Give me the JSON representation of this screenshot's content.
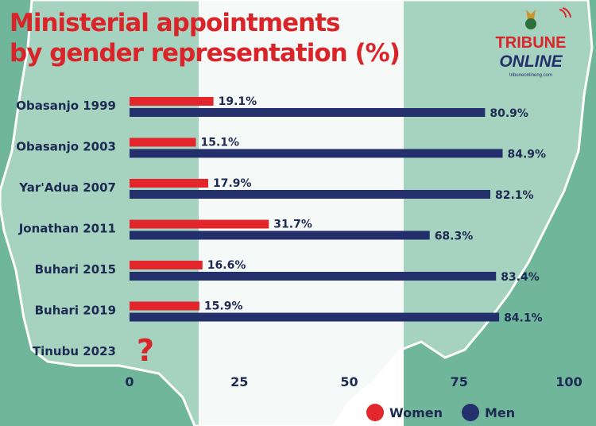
{
  "header": {
    "title_line1": "Ministerial appointments",
    "title_line2": "by gender representation (%)"
  },
  "logo": {
    "top_word": "TRIBUNE",
    "bottom_word": "ONLINE",
    "url": "tribuneonlineng.com"
  },
  "colors": {
    "background_green": "#6fb69a",
    "background_white": "#ffffff",
    "map_fill": "#e8f3f0",
    "title_red": "#d9252a",
    "women": "#e3262b",
    "men": "#24306b",
    "label_dark": "#1d2a52",
    "question_mark": "#d9252a"
  },
  "chart_data": {
    "type": "bar",
    "orientation": "horizontal",
    "categories": [
      "Obasanjo 1999",
      "Obasanjo 2003",
      "Yar'Adua 2007",
      "Jonathan 2011",
      "Buhari 2015",
      "Buhari 2019",
      "Tinubu 2023"
    ],
    "series": [
      {
        "name": "Women",
        "values": [
          19.1,
          15.1,
          17.9,
          31.7,
          16.6,
          15.9,
          null
        ],
        "labels": [
          "19.1%",
          "15.1%",
          "17.9%",
          "31.7%",
          "16.6%",
          "15.9%",
          ""
        ]
      },
      {
        "name": "Men",
        "values": [
          80.9,
          84.9,
          82.1,
          68.3,
          83.4,
          84.1,
          null
        ],
        "labels": [
          "80.9%",
          "84.9%",
          "82.1%",
          "68.3%",
          "83.4%",
          "84.1%",
          ""
        ]
      }
    ],
    "unknown_marker": "?",
    "xlim": [
      0,
      100
    ],
    "xticks": [
      0,
      25,
      50,
      75,
      100
    ],
    "xtick_labels": [
      "0",
      "25",
      "50",
      "75",
      "100"
    ],
    "grid": false,
    "legend_position": "bottom-right"
  }
}
